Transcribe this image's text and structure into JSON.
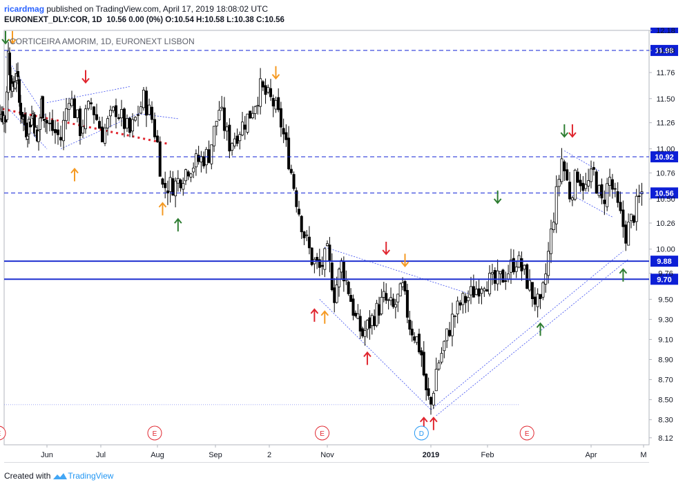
{
  "header": {
    "author": "ricardmag",
    "published_text": " published on TradingView.com, April 17, 2019 18:08:02 UTC",
    "symbol": "EURONEXT_DLY:COR, 1D",
    "change": "10.56 0.00 (0%)",
    "ohlc": "O:10.54 H:10.58 L:10.38 C:10.56"
  },
  "footer": {
    "created_with": "Created with",
    "brand": "TradingView"
  },
  "chart_data": {
    "type": "candlestick",
    "title": "CORTICEIRA AMORIM, 1D, EURONEXT LISBON",
    "ylim": [
      8.05,
      12.18
    ],
    "price_scale_ticks": [
      12.18,
      11.98,
      11.76,
      11.5,
      11.26,
      11.0,
      10.76,
      10.5,
      10.26,
      10.0,
      9.76,
      9.5,
      9.3,
      9.1,
      8.9,
      8.7,
      8.5,
      8.3,
      8.12
    ],
    "time_scale_labels": [
      "Jun",
      "Jul",
      "Aug",
      "Sep",
      "2",
      "Nov",
      "2019",
      "Feb",
      "Apr",
      "M"
    ],
    "time_anchors": [
      {
        "label": "Jun",
        "day": 0
      },
      {
        "label": "Aug",
        "day": 40
      },
      {
        "label": "Nov",
        "day": 106
      },
      {
        "label": "2019",
        "day": 150
      },
      {
        "label": "Apr",
        "day": 210
      }
    ],
    "horizontal_levels": [
      {
        "price": 11.98,
        "label": "11.98",
        "style": "dashed"
      },
      {
        "price": 10.92,
        "label": "10.92",
        "style": "dashed"
      },
      {
        "price": 10.56,
        "label": "10.56",
        "style": "dashed"
      },
      {
        "price": 9.88,
        "label": "9.88",
        "style": "solid"
      },
      {
        "price": 9.7,
        "label": "9.70",
        "style": "solid"
      }
    ],
    "current_price": 10.56,
    "event_markers": [
      {
        "label": "E",
        "day": -35,
        "type": "earnings"
      },
      {
        "label": "E",
        "day": 39,
        "type": "earnings"
      },
      {
        "label": "E",
        "day": 104,
        "type": "earnings"
      },
      {
        "label": "D",
        "day": 146,
        "type": "dividend"
      },
      {
        "label": "E",
        "day": 186,
        "type": "earnings"
      }
    ],
    "price_path": [
      {
        "day": -40,
        "price": 11.25
      },
      {
        "day": -35,
        "price": 11.4
      },
      {
        "day": -30,
        "price": 11.3
      },
      {
        "day": -28,
        "price": 11.95
      },
      {
        "day": -25,
        "price": 11.55
      },
      {
        "day": -22,
        "price": 11.8
      },
      {
        "day": -20,
        "price": 11.45
      },
      {
        "day": -15,
        "price": 11.2
      },
      {
        "day": -10,
        "price": 11.35
      },
      {
        "day": -7,
        "price": 11.05
      },
      {
        "day": -4,
        "price": 11.45
      },
      {
        "day": 0,
        "price": 11.25
      },
      {
        "day": 5,
        "price": 11.1
      },
      {
        "day": 8,
        "price": 11.55
      },
      {
        "day": 12,
        "price": 11.2
      },
      {
        "day": 16,
        "price": 11.45
      },
      {
        "day": 20,
        "price": 11.15
      },
      {
        "day": 25,
        "price": 11.4
      },
      {
        "day": 30,
        "price": 11.15
      },
      {
        "day": 35,
        "price": 11.5
      },
      {
        "day": 38,
        "price": 11.3
      },
      {
        "day": 40,
        "price": 11.05
      },
      {
        "day": 42,
        "price": 10.62
      },
      {
        "day": 47,
        "price": 10.65
      },
      {
        "day": 52,
        "price": 10.82
      },
      {
        "day": 56,
        "price": 10.88
      },
      {
        "day": 60,
        "price": 10.95
      },
      {
        "day": 64,
        "price": 11.4
      },
      {
        "day": 68,
        "price": 11.05
      },
      {
        "day": 72,
        "price": 11.2
      },
      {
        "day": 76,
        "price": 11.35
      },
      {
        "day": 80,
        "price": 11.6
      },
      {
        "day": 85,
        "price": 11.45
      },
      {
        "day": 88,
        "price": 11.25
      },
      {
        "day": 91,
        "price": 10.9
      },
      {
        "day": 94,
        "price": 10.5
      },
      {
        "day": 97,
        "price": 10.15
      },
      {
        "day": 100,
        "price": 9.9
      },
      {
        "day": 103,
        "price": 9.8
      },
      {
        "day": 106,
        "price": 9.95
      },
      {
        "day": 109,
        "price": 9.55
      },
      {
        "day": 112,
        "price": 9.85
      },
      {
        "day": 115,
        "price": 9.6
      },
      {
        "day": 118,
        "price": 9.3
      },
      {
        "day": 121,
        "price": 9.15
      },
      {
        "day": 125,
        "price": 9.3
      },
      {
        "day": 130,
        "price": 9.5
      },
      {
        "day": 134,
        "price": 9.4
      },
      {
        "day": 138,
        "price": 9.6
      },
      {
        "day": 141,
        "price": 9.25
      },
      {
        "day": 144,
        "price": 9.1
      },
      {
        "day": 146,
        "price": 8.95
      },
      {
        "day": 148,
        "price": 8.55
      },
      {
        "day": 150,
        "price": 8.45
      },
      {
        "day": 152,
        "price": 8.8
      },
      {
        "day": 155,
        "price": 9.05
      },
      {
        "day": 158,
        "price": 9.3
      },
      {
        "day": 161,
        "price": 9.45
      },
      {
        "day": 165,
        "price": 9.55
      },
      {
        "day": 170,
        "price": 9.7
      },
      {
        "day": 174,
        "price": 9.65
      },
      {
        "day": 178,
        "price": 9.75
      },
      {
        "day": 182,
        "price": 9.9
      },
      {
        "day": 185,
        "price": 9.75
      },
      {
        "day": 188,
        "price": 9.55
      },
      {
        "day": 191,
        "price": 9.4
      },
      {
        "day": 193,
        "price": 9.75
      },
      {
        "day": 196,
        "price": 10.35
      },
      {
        "day": 199,
        "price": 10.9
      },
      {
        "day": 202,
        "price": 10.55
      },
      {
        "day": 205,
        "price": 10.75
      },
      {
        "day": 208,
        "price": 10.6
      },
      {
        "day": 211,
        "price": 10.75
      },
      {
        "day": 214,
        "price": 10.45
      },
      {
        "day": 217,
        "price": 10.7
      },
      {
        "day": 220,
        "price": 10.4
      },
      {
        "day": 223,
        "price": 10.15
      },
      {
        "day": 226,
        "price": 10.35
      },
      {
        "day": 229,
        "price": 10.56
      }
    ]
  }
}
